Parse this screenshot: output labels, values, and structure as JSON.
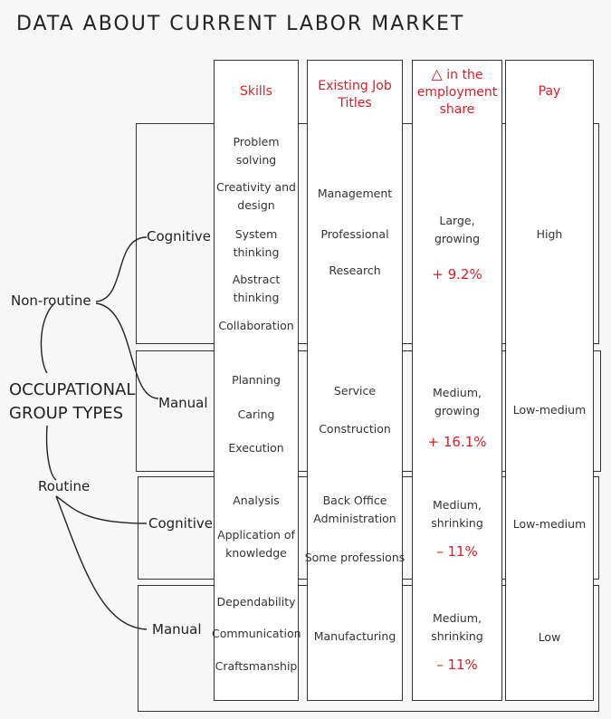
{
  "title": "DATA ABOUT CURRENT LABOR MARKET",
  "headers": {
    "skills": "Skills",
    "titles": "Existing Job Titles",
    "delta_symbol": "△",
    "delta": " in the employment share",
    "pay": "Pay"
  },
  "tree": {
    "root_line1": "OCCUPATIONAL",
    "root_line2": "GROUP TYPES",
    "nonroutine": "Non-routine",
    "routine": "Routine"
  },
  "rows": [
    {
      "group": "Cognitive",
      "skills": [
        "Problem solving",
        "Creativity and design",
        "System thinking",
        "Abstract thinking",
        "Collaboration"
      ],
      "titles": [
        "Management",
        "Professional",
        "Research"
      ],
      "share_desc": "Large, growing",
      "share_change": "+ 9.2%",
      "pay": "High"
    },
    {
      "group": "Manual",
      "skills": [
        "Planning",
        "Caring",
        "Execution"
      ],
      "titles": [
        "Service",
        "Construction"
      ],
      "share_desc": "Medium, growing",
      "share_change": "+ 16.1%",
      "pay": "Low-medium"
    },
    {
      "group": "Cognitive",
      "skills": [
        "Analysis",
        "Application of knowledge"
      ],
      "titles": [
        "Back Office Administration",
        "Some professions"
      ],
      "share_desc": "Medium, shrinking",
      "share_change": "– 11%",
      "pay": "Low-medium"
    },
    {
      "group": "Manual",
      "skills": [
        "Dependability",
        "Communication",
        "Craftsmanship"
      ],
      "titles": [
        "Manufacturing"
      ],
      "share_desc": "Medium, shrinking",
      "share_change": "– 11%",
      "pay": "Low"
    }
  ]
}
